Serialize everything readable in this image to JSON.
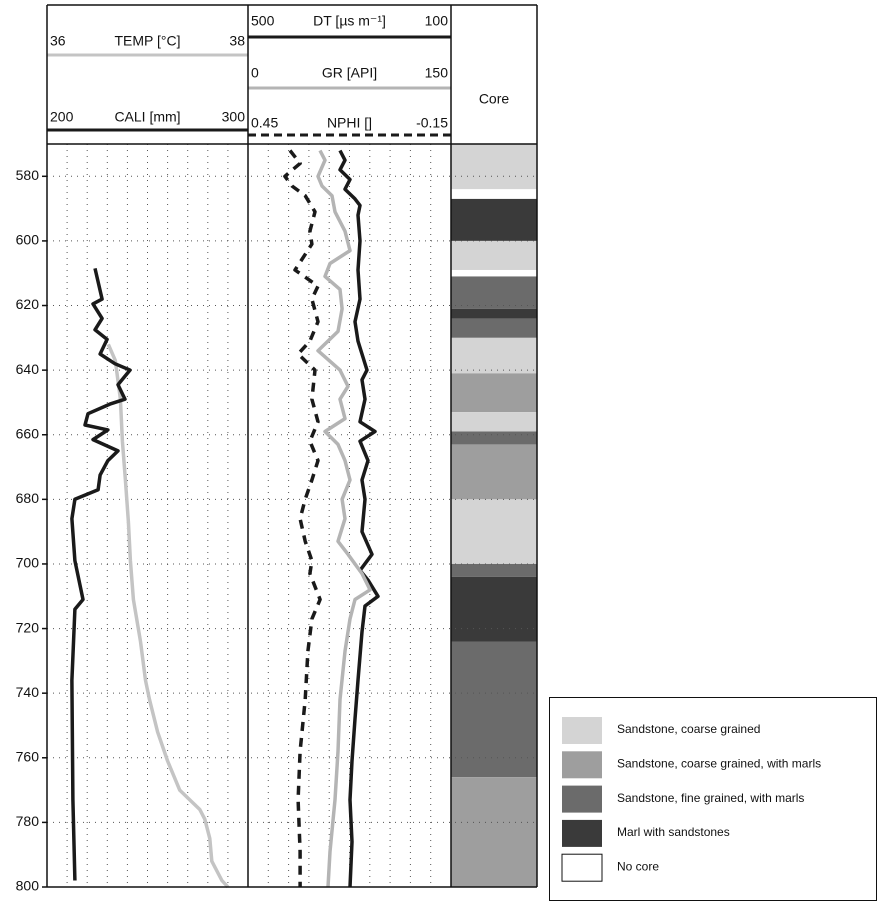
{
  "chart_data": {
    "type": "well-log",
    "ylim": [
      570,
      800
    ],
    "yticks": [
      580,
      600,
      620,
      640,
      660,
      680,
      700,
      720,
      740,
      760,
      780,
      800
    ],
    "grid": true,
    "tracks": [
      {
        "series": [
          {
            "name": "TEMP [°C]",
            "color": "#c4c4c4",
            "xlim": [
              36,
              38
            ],
            "depth": [
              632,
              637,
              649,
              662,
              674,
              687,
              699,
              711,
              724,
              736,
              742,
              752,
              761,
              770,
              776,
              779,
              785,
              792,
              798,
              800
            ],
            "values": [
              36.61,
              36.68,
              36.73,
              36.75,
              36.78,
              36.81,
              36.83,
              36.86,
              36.93,
              36.98,
              37.02,
              37.1,
              37.2,
              37.32,
              37.52,
              37.57,
              37.62,
              37.64,
              37.74,
              37.8
            ]
          },
          {
            "name": "CALI [mm]",
            "color": "#1a1a1a",
            "xlim": [
              200,
              300
            ],
            "depth": [
              608.5,
              618,
              619.5,
              624,
              627.5,
              630.5,
              635,
              638,
              640,
              644.5,
              649,
              650.5,
              653.5,
              657,
              658.5,
              661.5,
              665,
              668,
              672.5,
              677,
              680,
              686,
              699,
              711,
              714,
              736,
              773,
              798
            ],
            "values": [
              223.9,
              227.4,
              222.9,
              227.4,
              223.9,
              229.9,
              226.4,
              233.8,
              241.3,
              235.3,
              238.8,
              231.3,
              220.4,
              218.9,
              230.3,
              222.9,
              235.3,
              230.3,
              226.4,
              225.4,
              213.9,
              212.4,
              213.9,
              217.9,
              213.9,
              212.4,
              212.9,
              213.9
            ]
          }
        ]
      },
      {
        "series": [
          {
            "name": "DT [µs m⁻¹]",
            "color": "#1a1a1a",
            "xlim": [
              500,
              100
            ],
            "depth": [
              572,
              575,
              578,
              581,
              584,
              587,
              589,
              592,
              600,
              609,
              618,
              625,
              631,
              640,
              643,
              649,
              656,
              659,
              662,
              668,
              674,
              680,
              690,
              697,
              702,
              705,
              710,
              713,
              721,
              736,
              748,
              761,
              773,
              786,
              800
            ],
            "values": [
              318.8,
              308.9,
              318.8,
              299.1,
              308.9,
              289.2,
              279.4,
              283.3,
              279.4,
              283.3,
              279.4,
              289.2,
              283.3,
              265.6,
              275.4,
              269.5,
              279.4,
              249.8,
              279.4,
              263.6,
              275.4,
              269.5,
              275.4,
              255.7,
              279.4,
              263.6,
              243.9,
              269.5,
              275.4,
              283.3,
              289.2,
              295.1,
              299.1,
              295.1,
              299.1
            ]
          },
          {
            "name": "GR [API]",
            "color": "#b4b4b4",
            "xlim": [
              0,
              150
            ],
            "depth": [
              572,
              575,
              580,
              583,
              586,
              591,
              597,
              603,
              607,
              611,
              615,
              621,
              628,
              634,
              640,
              645,
              649,
              655,
              659,
              663,
              668,
              674,
              680,
              686,
              693,
              697,
              703,
              708,
              711,
              717,
              727,
              742,
              758,
              773,
              789,
              800
            ],
            "values": [
              53.2,
              56.9,
              51.7,
              54.7,
              62.1,
              64.3,
              71.7,
              75.4,
              60.6,
              56.9,
              68.0,
              69.5,
              66.5,
              51.7,
              68.0,
              73.9,
              68.0,
              71.7,
              56.9,
              66.5,
              71.7,
              75.4,
              69.5,
              71.7,
              66.5,
              73.9,
              84.2,
              90.2,
              79.1,
              75.4,
              71.7,
              68.0,
              66.5,
              64.3,
              60.6,
              59.1
            ]
          },
          {
            "name": "NPHI []",
            "color": "#1a1a1a",
            "dash": true,
            "xlim": [
              0.45,
              -0.15
            ],
            "depth": [
              572,
              576,
              580,
              583,
              586,
              591,
              597,
              601,
              609,
              614,
              618,
              625,
              631,
              635,
              640,
              649,
              656,
              662,
              668,
              674,
              680,
              686,
              693,
              699,
              703,
              711,
              717,
              727,
              742,
              758,
              773,
              789,
              800
            ],
            "values": [
              0.326,
              0.296,
              0.341,
              0.32,
              0.281,
              0.252,
              0.267,
              0.261,
              0.311,
              0.243,
              0.261,
              0.243,
              0.267,
              0.302,
              0.252,
              0.261,
              0.243,
              0.267,
              0.243,
              0.261,
              0.281,
              0.296,
              0.281,
              0.261,
              0.267,
              0.237,
              0.261,
              0.273,
              0.281,
              0.296,
              0.302,
              0.296,
              0.296
            ]
          }
        ]
      }
    ],
    "core": {
      "title": "Core",
      "top": [
        570,
        584,
        587,
        600,
        609,
        611,
        621,
        624,
        630,
        641,
        653,
        659,
        663,
        680,
        700,
        704,
        724,
        766
      ],
      "bottom": [
        584,
        587,
        600,
        609,
        611,
        621,
        624,
        630,
        641,
        653,
        659,
        663,
        680,
        700,
        704,
        724,
        766,
        800
      ],
      "facies": [
        0,
        4,
        3,
        0,
        4,
        2,
        3,
        2,
        0,
        1,
        0,
        2,
        1,
        0,
        2,
        3,
        2,
        1
      ],
      "legend": [
        {
          "name": "Sandstone, coarse grained",
          "color": "#d4d4d4"
        },
        {
          "name": "Sandstone, coarse grained,  with marls",
          "color": "#9e9e9e"
        },
        {
          "name": "Sandstone, fine grained, with marls",
          "color": "#6b6b6b"
        },
        {
          "name": "Marl with sandstones",
          "color": "#3a3a3a"
        },
        {
          "name": "No core",
          "color": "#ffffff"
        }
      ]
    }
  }
}
